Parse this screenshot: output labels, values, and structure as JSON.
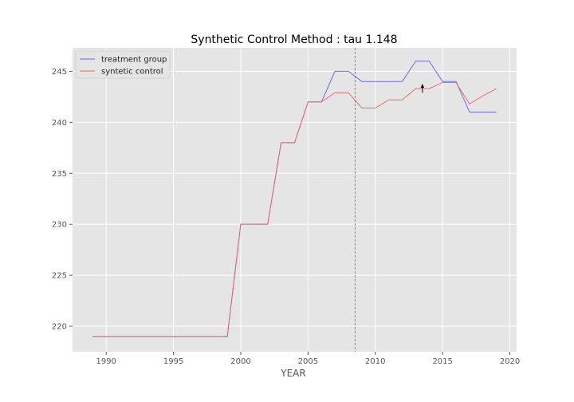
{
  "chart_data": {
    "type": "line",
    "title": "Synthetic Control Method : tau 1.148",
    "xlabel": "YEAR",
    "ylabel": "",
    "xlim": [
      1987.5,
      2020.5
    ],
    "ylim": [
      217.5,
      247.3
    ],
    "xticks": [
      1990,
      1995,
      2000,
      2005,
      2010,
      2015,
      2020
    ],
    "yticks": [
      220,
      225,
      230,
      235,
      240,
      245
    ],
    "grid": true,
    "legend_position": "top-left",
    "intervention_line_x": 2008.5,
    "annotation_arrow": {
      "x": 2013.5,
      "y_from": 242.9,
      "y_to": 243.7
    },
    "series": [
      {
        "name": "treatment group",
        "color": "#6666ee",
        "x": [
          1989,
          1990,
          1991,
          1992,
          1993,
          1994,
          1995,
          1996,
          1997,
          1998,
          1999,
          2000,
          2001,
          2002,
          2003,
          2004,
          2005,
          2006,
          2007,
          2008,
          2009,
          2010,
          2011,
          2012,
          2013,
          2014,
          2015,
          2016,
          2017,
          2018,
          2019
        ],
        "values": [
          219,
          219,
          219,
          219,
          219,
          219,
          219,
          219,
          219,
          219,
          219,
          230,
          230,
          230,
          238,
          238,
          242,
          242,
          245,
          245,
          244,
          244,
          244,
          244,
          246,
          246,
          244,
          244,
          241,
          241,
          241
        ]
      },
      {
        "name": "syntetic control",
        "color": "#ee6666",
        "x": [
          1989,
          1990,
          1991,
          1992,
          1993,
          1994,
          1995,
          1996,
          1997,
          1998,
          1999,
          2000,
          2001,
          2002,
          2003,
          2004,
          2005,
          2006,
          2007,
          2008,
          2009,
          2010,
          2011,
          2012,
          2013,
          2014,
          2015,
          2016,
          2017,
          2018,
          2019
        ],
        "values": [
          219,
          219,
          219,
          219,
          219,
          219,
          219,
          219,
          219,
          219,
          219,
          230,
          230,
          230,
          238,
          238,
          242,
          242,
          242.9,
          242.9,
          241.4,
          241.4,
          242.2,
          242.2,
          243.3,
          243.3,
          243.9,
          243.9,
          241.8,
          242.6,
          243.3
        ]
      }
    ]
  }
}
